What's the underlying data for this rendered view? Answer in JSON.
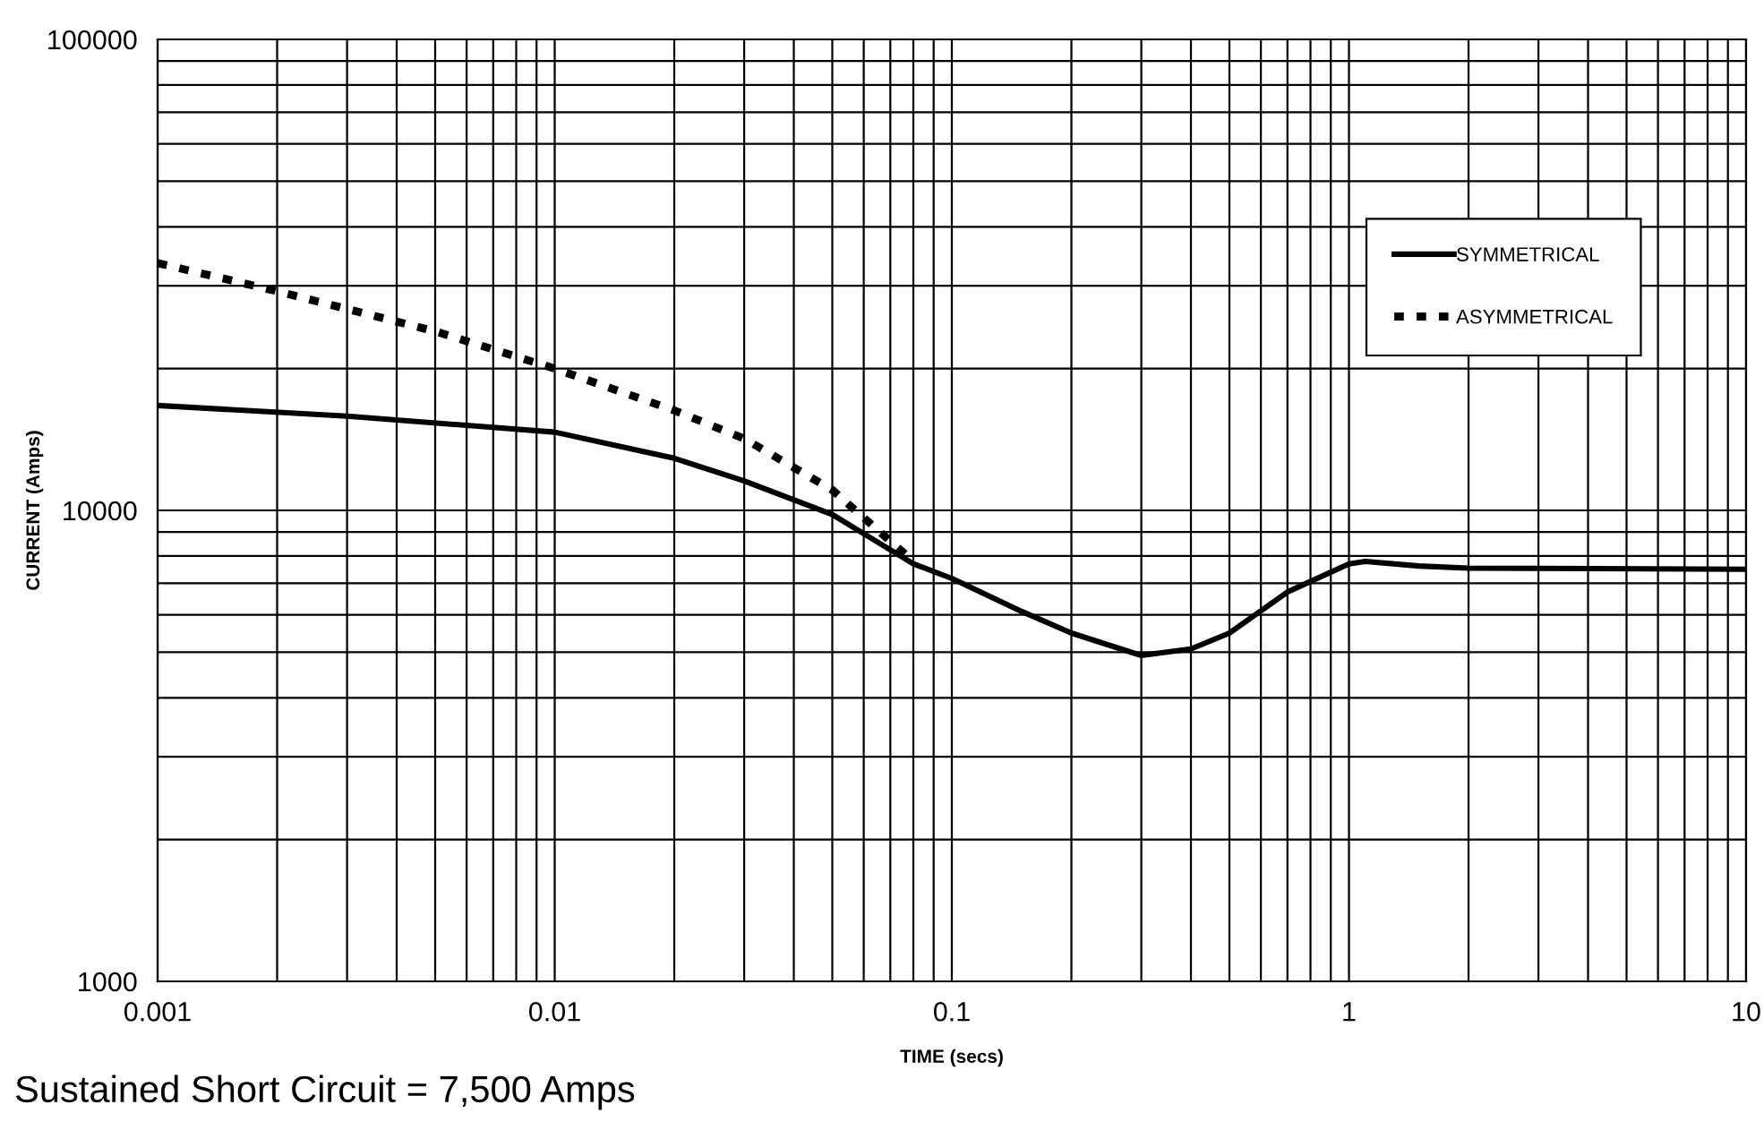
{
  "chart_data": {
    "type": "line",
    "xlabel": "TIME (secs)",
    "ylabel": "CURRENT (Amps)",
    "annotations": [
      "Sustained Short Circuit = 7,500 Amps"
    ],
    "log": "xy",
    "grid": true,
    "legend": "top right",
    "marker": "none",
    "xlim": [
      0.001,
      10
    ],
    "xticks": [
      0.001,
      0.01,
      0.1,
      1,
      10
    ],
    "ylim": [
      1000,
      100000
    ],
    "yticks": [
      1000,
      10000,
      100000
    ],
    "series": [
      {
        "name": "SYMMETRICAL",
        "color": "#000000",
        "line_style": "solid",
        "x": [
          0.001,
          0.003,
          0.01,
          0.02,
          0.03,
          0.05,
          0.08,
          0.1,
          0.15,
          0.2,
          0.3,
          0.4,
          0.5,
          0.7,
          1.0,
          1.1,
          1.5,
          2,
          10
        ],
        "values": [
          16700,
          15850,
          14660,
          12900,
          11550,
          9800,
          7700,
          7170,
          6100,
          5490,
          4920,
          5080,
          5490,
          6710,
          7700,
          7790,
          7620,
          7540,
          7500
        ]
      },
      {
        "name": "ASYMMETRICAL",
        "color": "#000000",
        "line_style": "dotted",
        "x": [
          0.001,
          0.002,
          0.005,
          0.01,
          0.02,
          0.03,
          0.05,
          0.07,
          0.08
        ],
        "values": [
          33500,
          29200,
          24000,
          20000,
          16300,
          14200,
          11050,
          8600,
          7800
        ]
      }
    ]
  }
}
